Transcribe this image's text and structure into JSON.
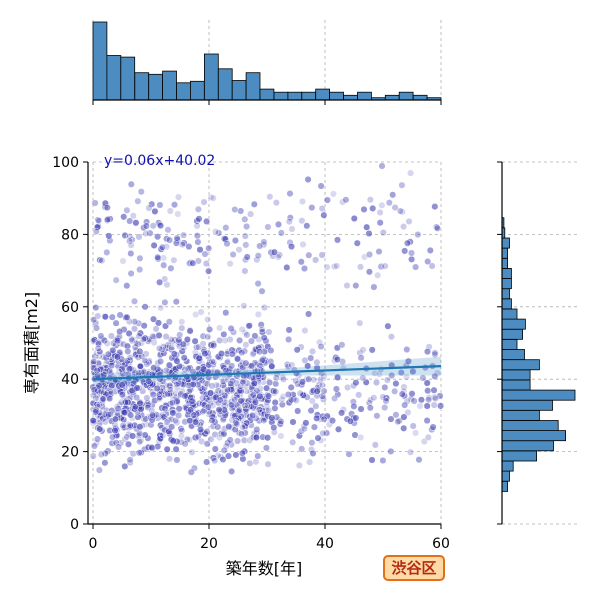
{
  "area_tag": "渋谷区",
  "colors": {
    "points": "#3d3db3",
    "regression": "#1f77b4",
    "histogram_fill": "#4c8cc0",
    "histogram_edge": "#000000",
    "grid": "#b0b0b0",
    "equation_text": "#1010b0",
    "badge_border": "#e0701a",
    "badge_fill": "#ffd9a6",
    "badge_text": "#b32b10"
  },
  "chart_data": {
    "type": "scatter",
    "subtype": "jointplot with marginal histograms",
    "xlabel": "築年数[年]",
    "ylabel": "専有面積[m2]",
    "xlim": [
      0,
      60
    ],
    "ylim": [
      0,
      100
    ],
    "xticks": [
      "0",
      "20",
      "40",
      "60"
    ],
    "yticks": [
      "0",
      "20",
      "40",
      "60",
      "80",
      "100"
    ],
    "grid": true,
    "annotation": "y=0.06x+40.02",
    "regression": {
      "slope": 0.06,
      "intercept": 40.02,
      "x_range": [
        0,
        60
      ]
    },
    "marginal_x": {
      "bin_width": 2.4,
      "x_start": 0,
      "counts": [
        100,
        57,
        55,
        35,
        33,
        37,
        22,
        24,
        59,
        40,
        25,
        35,
        14,
        10,
        10,
        10,
        14,
        10,
        6,
        10,
        3,
        6,
        10,
        6,
        3
      ]
    },
    "marginal_y": {
      "bin_width": 2.8,
      "y_start": 9,
      "counts": [
        6,
        8,
        12,
        37,
        55,
        68,
        60,
        40,
        54,
        78,
        30,
        30,
        40,
        24,
        16,
        22,
        25,
        16,
        10,
        8,
        10,
        10,
        6,
        6,
        8,
        3,
        2
      ]
    },
    "dense_regions": [
      {
        "x": [
          0,
          30
        ],
        "y": [
          10,
          65
        ],
        "share": 0.7
      },
      {
        "x": [
          30,
          60
        ],
        "y": [
          10,
          60
        ],
        "share": 0.16
      },
      {
        "x": [
          0,
          60
        ],
        "y": [
          60,
          100
        ],
        "share": 0.14
      }
    ]
  }
}
